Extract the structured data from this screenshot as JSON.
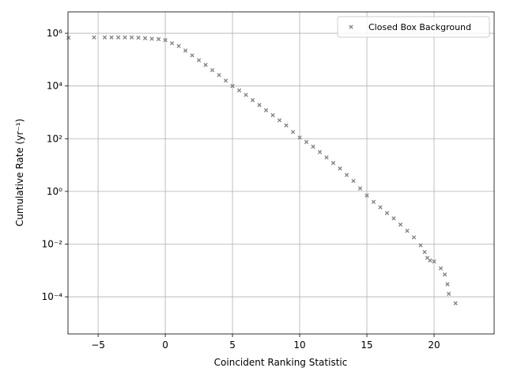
{
  "chart_data": {
    "type": "scatter",
    "xlabel": "Coincident Ranking Statistic",
    "ylabel": "Cumulative Rate (yr⁻¹)",
    "xlim": [
      -7.24,
      24.47
    ],
    "ylim": [
      3.9e-06,
      6500000
    ],
    "log_y": true,
    "grid": true,
    "legend": "upper right",
    "xticks": [
      {
        "value": -5,
        "label": "−5"
      },
      0,
      5,
      10,
      15,
      20
    ],
    "yticks": [
      {
        "value": 0.0001,
        "label": "10⁻⁴"
      },
      {
        "value": 0.01,
        "label": "10⁻²"
      },
      {
        "value": 1,
        "label": "10⁰"
      },
      {
        "value": 100,
        "label": "10²"
      },
      {
        "value": 10000,
        "label": "10⁴"
      },
      {
        "value": 1000000,
        "label": "10⁶"
      }
    ],
    "series": [
      {
        "name": "Closed Box Background",
        "color": "#808080",
        "x": [
          -7.2,
          -5.3,
          -4.5,
          -4,
          -3.5,
          -3,
          -2.5,
          -2,
          -1.5,
          -1,
          -0.5,
          0,
          0.5,
          1,
          1.5,
          2,
          2.5,
          3,
          3.5,
          4,
          4.5,
          5,
          5.5,
          6,
          6.5,
          7,
          7.5,
          8,
          8.5,
          9,
          9.5,
          10,
          10.5,
          11,
          11.5,
          12,
          12.5,
          13,
          13.5,
          14,
          14.5,
          15,
          15.5,
          16,
          16.5,
          17,
          17.5,
          18,
          18.5,
          19,
          19.3,
          19.5,
          19.7,
          20,
          20.5,
          20.8,
          21,
          21.1,
          21.6
        ],
        "values": [
          680000,
          700000,
          700000,
          700000,
          700000,
          700000,
          700000,
          680000,
          650000,
          620000,
          600000,
          550000,
          420000,
          330000,
          220000,
          145000,
          95000,
          63000,
          40000,
          26000,
          16000,
          10000,
          6800,
          4600,
          2900,
          1900,
          1200,
          780,
          500,
          320,
          180,
          110,
          75,
          50,
          31,
          19.5,
          12,
          7.4,
          4.2,
          2.5,
          1.3,
          0.7,
          0.4,
          0.25,
          0.15,
          0.095,
          0.055,
          0.032,
          0.018,
          0.009,
          0.005,
          0.003,
          0.0024,
          0.0022,
          0.0012,
          0.0007,
          0.0003,
          0.00013,
          5.7e-05
        ]
      }
    ]
  }
}
